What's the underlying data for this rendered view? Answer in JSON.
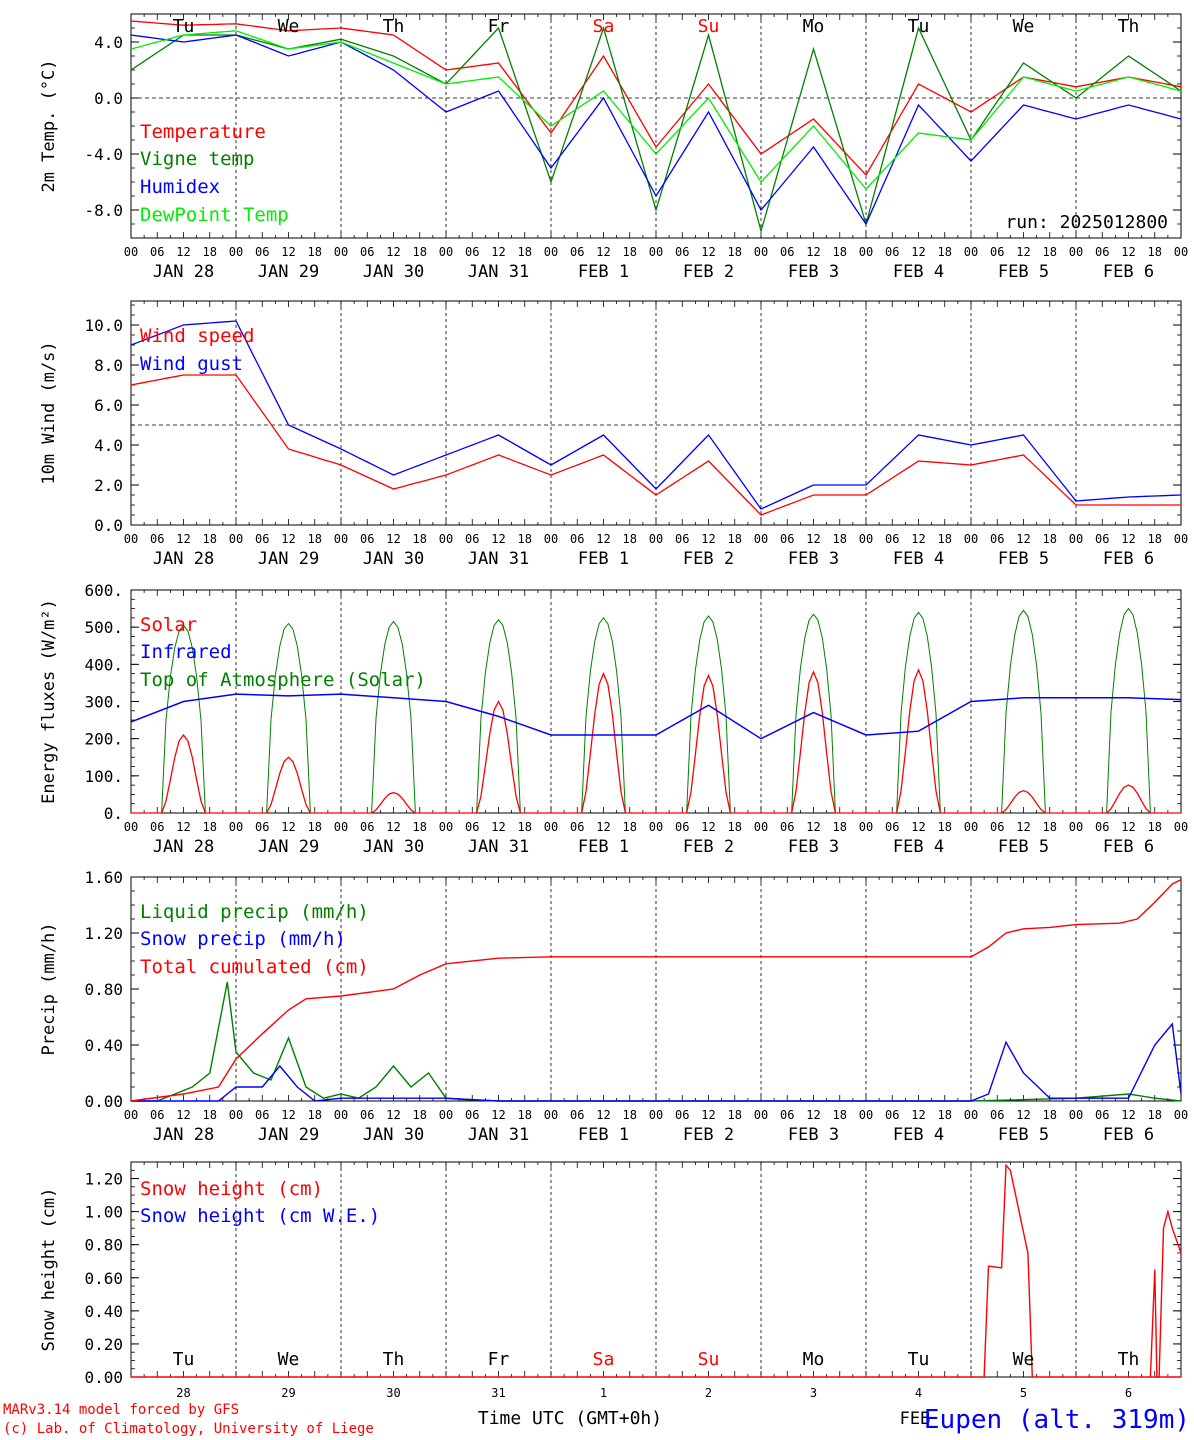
{
  "chart_data": [
    {
      "type": "line",
      "ylabel": "2m Temp. (°C)",
      "ylim": [
        -10,
        6
      ],
      "yticks": [
        "4.0",
        "0.0",
        "-4.0",
        "-8.0"
      ],
      "ytick_values": [
        4,
        0,
        -4,
        -8
      ],
      "ref_line": 0,
      "run_label": "run: 2025012800",
      "x_hours": [
        0,
        12,
        24,
        36,
        48,
        60,
        72,
        84,
        96,
        108,
        120,
        132,
        144,
        156,
        168,
        180,
        192,
        204,
        216,
        228,
        240
      ],
      "series": [
        {
          "name": "Temperature",
          "color": "#ff0000",
          "values": [
            5.5,
            5.2,
            5.3,
            4.8,
            5.0,
            4.5,
            2.0,
            2.5,
            -2.5,
            3.0,
            -3.5,
            1.0,
            -4.0,
            -1.5,
            -5.5,
            1.0,
            -1.0,
            1.5,
            0.8,
            1.5,
            0.8
          ]
        },
        {
          "name": "Vigne temp",
          "color": "#008000",
          "values": [
            2.0,
            4.5,
            4.5,
            3.5,
            4.2,
            3.0,
            1.0,
            5.0,
            -6.0,
            5.0,
            -8.0,
            4.5,
            -9.5,
            3.5,
            -9.0,
            5.0,
            -3.0,
            2.5,
            0.0,
            3.0,
            0.5
          ]
        },
        {
          "name": "Humidex",
          "color": "#0000ff",
          "values": [
            4.5,
            4.0,
            4.5,
            3.0,
            4.0,
            2.0,
            -1.0,
            0.5,
            -5.0,
            0.0,
            -7.0,
            -1.0,
            -8.0,
            -3.5,
            -9.0,
            -0.5,
            -4.5,
            -0.5,
            -1.5,
            -0.5,
            -1.5
          ]
        },
        {
          "name": "DewPoint Temp",
          "color": "#00ee00",
          "values": [
            3.5,
            4.5,
            4.8,
            3.5,
            4.0,
            2.5,
            1.0,
            1.5,
            -2.0,
            0.5,
            -4.0,
            0.0,
            -6.0,
            -2.0,
            -6.5,
            -2.5,
            -3.0,
            1.5,
            0.5,
            1.5,
            0.5
          ]
        }
      ]
    },
    {
      "type": "line",
      "ylabel": "10m Wind (m/s)",
      "ylim": [
        0,
        11.2
      ],
      "yticks": [
        "10.0",
        "8.0",
        "6.0",
        "4.0",
        "2.0",
        "0.0"
      ],
      "ytick_values": [
        10,
        8,
        6,
        4,
        2,
        0
      ],
      "ref_line": 5,
      "x_hours": [
        0,
        12,
        24,
        36,
        48,
        60,
        72,
        84,
        96,
        108,
        120,
        132,
        144,
        156,
        168,
        180,
        192,
        204,
        216,
        228,
        240
      ],
      "series": [
        {
          "name": "Wind speed",
          "color": "#ff0000",
          "values": [
            7.0,
            7.5,
            7.5,
            3.8,
            3.0,
            1.8,
            2.5,
            3.5,
            2.5,
            3.5,
            1.5,
            3.2,
            0.5,
            1.5,
            1.5,
            3.2,
            3.0,
            3.5,
            1.0,
            1.0,
            1.0
          ]
        },
        {
          "name": "Wind gust",
          "color": "#0000ff",
          "values": [
            9.0,
            10.0,
            10.2,
            5.0,
            3.8,
            2.5,
            3.5,
            4.5,
            3.0,
            4.5,
            1.8,
            4.5,
            0.8,
            2.0,
            2.0,
            4.5,
            4.0,
            4.5,
            1.2,
            1.4,
            1.5
          ]
        }
      ]
    },
    {
      "type": "line",
      "ylabel": "Energy fluxes (W/m²)",
      "ylim": [
        0,
        600
      ],
      "yticks": [
        "600.",
        "500.",
        "400.",
        "300.",
        "200.",
        "100.",
        "0."
      ],
      "ytick_values": [
        600,
        500,
        400,
        300,
        200,
        100,
        0
      ],
      "peaks": {
        "toa": [
          505,
          510,
          515,
          520,
          525,
          530,
          535,
          540,
          545,
          550
        ],
        "solar": [
          210,
          150,
          55,
          300,
          375,
          370,
          380,
          385,
          60,
          75
        ]
      },
      "series": [
        {
          "name": "Solar",
          "color": "#ff0000"
        },
        {
          "name": "Infrared",
          "color": "#0000ff",
          "x_hours": [
            0,
            12,
            24,
            36,
            48,
            60,
            72,
            84,
            96,
            108,
            120,
            132,
            144,
            156,
            168,
            180,
            192,
            204,
            216,
            228,
            240
          ],
          "values": [
            245,
            300,
            320,
            315,
            320,
            310,
            300,
            260,
            210,
            210,
            210,
            290,
            200,
            270,
            210,
            220,
            300,
            310,
            310,
            310,
            305
          ]
        },
        {
          "name": "Top of Atmosphere (Solar)",
          "color": "#008000"
        }
      ]
    },
    {
      "type": "line",
      "ylabel": "Precip (mm/h)",
      "ylim": [
        0,
        1.6
      ],
      "yticks": [
        "1.60",
        "1.20",
        "0.80",
        "0.40",
        "0.00"
      ],
      "ytick_values": [
        1.6,
        1.2,
        0.8,
        0.4,
        0
      ],
      "series": [
        {
          "name": "Liquid precip (mm/h)",
          "color": "#008000",
          "x_hours": [
            0,
            6,
            10,
            14,
            18,
            22,
            24,
            28,
            32,
            36,
            40,
            44,
            48,
            52,
            56,
            60,
            64,
            68,
            72,
            76,
            84,
            96,
            192,
            216,
            228,
            234,
            240
          ],
          "values": [
            0,
            0,
            0.05,
            0.1,
            0.2,
            0.85,
            0.35,
            0.2,
            0.15,
            0.45,
            0.1,
            0.02,
            0.05,
            0.02,
            0.1,
            0.25,
            0.1,
            0.2,
            0.02,
            0.01,
            0.0,
            0.0,
            0.0,
            0.02,
            0.05,
            0.02,
            0.0
          ]
        },
        {
          "name": "Snow precip (mm/h)",
          "color": "#0000ff",
          "x_hours": [
            0,
            20,
            24,
            30,
            34,
            38,
            42,
            48,
            72,
            84,
            192,
            196,
            200,
            204,
            210,
            216,
            228,
            234,
            238,
            240
          ],
          "values": [
            0,
            0,
            0.1,
            0.1,
            0.25,
            0.1,
            0,
            0.02,
            0.02,
            0,
            0,
            0.05,
            0.42,
            0.2,
            0.02,
            0.02,
            0.02,
            0.4,
            0.55,
            0.05
          ]
        },
        {
          "name": "Total cumulated (cm)",
          "color": "#ff0000",
          "x_hours": [
            0,
            12,
            20,
            24,
            30,
            36,
            40,
            48,
            60,
            66,
            72,
            84,
            96,
            120,
            144,
            168,
            192,
            196,
            200,
            204,
            210,
            216,
            226,
            230,
            234,
            238,
            240
          ],
          "values": [
            0,
            0.05,
            0.1,
            0.3,
            0.48,
            0.65,
            0.73,
            0.75,
            0.8,
            0.9,
            0.98,
            1.02,
            1.03,
            1.03,
            1.03,
            1.03,
            1.03,
            1.1,
            1.2,
            1.23,
            1.24,
            1.26,
            1.27,
            1.3,
            1.42,
            1.55,
            1.58
          ]
        }
      ]
    },
    {
      "type": "line",
      "ylabel": "Snow height (cm)",
      "ylim": [
        0,
        1.3
      ],
      "yticks": [
        "1.20",
        "1.00",
        "0.80",
        "0.60",
        "0.40",
        "0.20",
        "0.00"
      ],
      "ytick_values": [
        1.2,
        1.0,
        0.8,
        0.6,
        0.4,
        0.2,
        0
      ],
      "series": [
        {
          "name": "Snow height (cm)",
          "color": "#ff0000",
          "x_hours": [
            0,
            195,
            196,
            199,
            200,
            201,
            203,
            205,
            206,
            240
          ],
          "values": [
            0,
            0,
            0.67,
            0.66,
            1.28,
            1.25,
            1.0,
            0.75,
            0,
            0
          ]
        },
        {
          "name": "Snow height (cm W.E.)",
          "color": "#0000ff",
          "values": []
        }
      ],
      "extra_snow": {
        "x_hours": [
          233,
          234,
          234.5,
          235,
          236,
          237,
          238,
          240
        ],
        "values": [
          0,
          0.65,
          0,
          0,
          0.9,
          1.0,
          0.9,
          0.75
        ]
      }
    }
  ],
  "weekday_labels": [
    {
      "text": "Tu",
      "weekend": false
    },
    {
      "text": "We",
      "weekend": false
    },
    {
      "text": "Th",
      "weekend": false
    },
    {
      "text": "Fr",
      "weekend": false
    },
    {
      "text": "Sa",
      "weekend": true
    },
    {
      "text": "Su",
      "weekend": true
    },
    {
      "text": "Mo",
      "weekend": false
    },
    {
      "text": "Tu",
      "weekend": false
    },
    {
      "text": "We",
      "weekend": false
    },
    {
      "text": "Th",
      "weekend": false
    }
  ],
  "hour_ticks": [
    "00",
    "06",
    "12",
    "18"
  ],
  "date_labels": [
    "JAN 28",
    "JAN 29",
    "JAN 30",
    "JAN 31",
    "FEB  1",
    "FEB  2",
    "FEB  3",
    "FEB  4",
    "FEB  5",
    "FEB  6"
  ],
  "day_numbers": [
    "28",
    "29",
    "30",
    "31",
    "1",
    "2",
    "3",
    "4",
    "5",
    "6"
  ],
  "x_axis_title": "Time UTC (GMT+0h)",
  "month_label": "FEB",
  "credit_lines": [
    "MARv3.14 model forced by GFS",
    "(c) Lab. of Climatology, University of Liege"
  ],
  "station_label": "Eupen (alt. 319m)",
  "colors": {
    "weekday": "#000000",
    "weekend": "#ff0000",
    "credit": "#ff0000",
    "station": "#0000ff"
  }
}
